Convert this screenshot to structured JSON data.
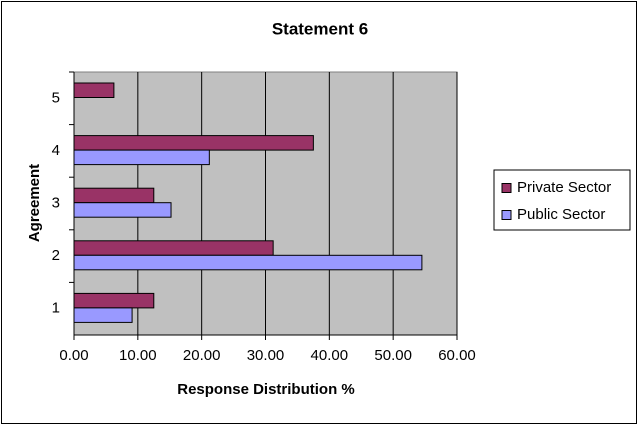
{
  "chart_data": {
    "type": "hbar",
    "title": "Statement 6",
    "x_label": "Response Distribution %",
    "y_label": "Agreement",
    "categories": [
      "1",
      "2",
      "3",
      "4",
      "5"
    ],
    "series": [
      {
        "name": "Private Sector",
        "color": "#993366",
        "values": [
          12.5,
          31.2,
          12.5,
          37.5,
          6.25
        ]
      },
      {
        "name": "Public Sector",
        "color": "#9999ff",
        "values": [
          9.1,
          54.5,
          15.2,
          21.2,
          0
        ]
      }
    ],
    "xlim": [
      0,
      60
    ],
    "xticks": [
      {
        "value": 0,
        "label": "0.00"
      },
      {
        "value": 10,
        "label": "10.00"
      },
      {
        "value": 20,
        "label": "20.00"
      },
      {
        "value": 30,
        "label": "30.00"
      },
      {
        "value": 40,
        "label": "40.00"
      },
      {
        "value": 50,
        "label": "50.00"
      },
      {
        "value": 60,
        "label": "60.00"
      }
    ],
    "grid": true,
    "legend": "right"
  }
}
